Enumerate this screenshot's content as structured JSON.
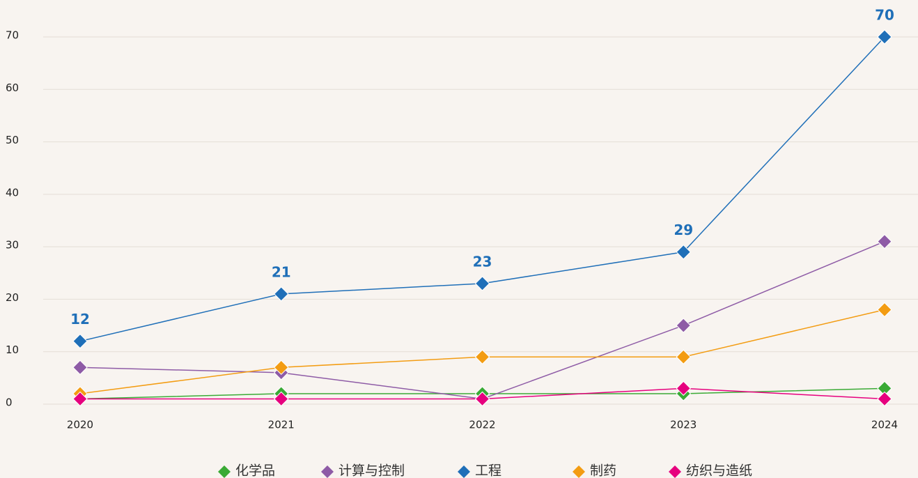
{
  "chart_data": {
    "type": "line",
    "categories": [
      "2020",
      "2021",
      "2022",
      "2023",
      "2024"
    ],
    "ylim": [
      0,
      70
    ],
    "yticks": [
      0,
      10,
      20,
      30,
      40,
      50,
      60,
      70
    ],
    "grid": true,
    "legend": "bottom",
    "series": [
      {
        "name": "化学品",
        "color": "#3aaa35",
        "values": [
          1,
          2,
          2,
          2,
          3
        ]
      },
      {
        "name": "计算与控制",
        "color": "#8e5ba6",
        "values": [
          7,
          6,
          1,
          15,
          31
        ]
      },
      {
        "name": "工程",
        "color": "#1f6fb8",
        "values": [
          12,
          21,
          23,
          29,
          70
        ],
        "show_labels": true
      },
      {
        "name": "制药",
        "color": "#f39c12",
        "values": [
          2,
          7,
          9,
          9,
          18
        ]
      },
      {
        "name": "纺织与造纸",
        "color": "#e6007e",
        "values": [
          1,
          1,
          1,
          3,
          1
        ]
      }
    ]
  }
}
